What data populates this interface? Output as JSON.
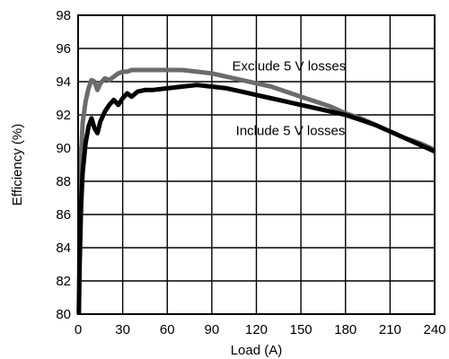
{
  "chart_data": {
    "type": "line",
    "title": "",
    "xlabel": "Load (A)",
    "ylabel": "Efficiency (%)",
    "xlim": [
      0,
      240
    ],
    "ylim": [
      80,
      98
    ],
    "xticks": [
      0,
      30,
      60,
      90,
      120,
      150,
      180,
      210,
      240
    ],
    "yticks": [
      80,
      82,
      84,
      86,
      88,
      90,
      92,
      94,
      96,
      98
    ],
    "grid": true,
    "legend": "none",
    "series": [
      {
        "name": "Exclude 5 V losses",
        "color": "#6b6b6b",
        "points": [
          [
            0.5,
            80.0
          ],
          [
            1,
            86.0
          ],
          [
            2,
            89.5
          ],
          [
            3,
            91.5
          ],
          [
            5,
            92.8
          ],
          [
            7,
            93.6
          ],
          [
            9,
            94.1
          ],
          [
            11,
            94.0
          ],
          [
            13,
            93.5
          ],
          [
            15,
            93.9
          ],
          [
            18,
            94.2
          ],
          [
            21,
            94.1
          ],
          [
            24,
            94.3
          ],
          [
            27,
            94.5
          ],
          [
            30,
            94.6
          ],
          [
            33,
            94.6
          ],
          [
            36,
            94.7
          ],
          [
            40,
            94.7
          ],
          [
            45,
            94.7
          ],
          [
            50,
            94.7
          ],
          [
            60,
            94.7
          ],
          [
            70,
            94.7
          ],
          [
            80,
            94.6
          ],
          [
            90,
            94.5
          ],
          [
            100,
            94.3
          ],
          [
            110,
            94.1
          ],
          [
            120,
            93.9
          ],
          [
            130,
            93.7
          ],
          [
            140,
            93.4
          ],
          [
            150,
            93.1
          ],
          [
            160,
            92.8
          ],
          [
            170,
            92.5
          ],
          [
            180,
            92.1
          ],
          [
            190,
            91.8
          ],
          [
            200,
            91.4
          ],
          [
            210,
            91.0
          ],
          [
            220,
            90.6
          ],
          [
            230,
            90.3
          ],
          [
            240,
            89.9
          ]
        ]
      },
      {
        "name": "Include 5 V losses",
        "color": "#000000",
        "points": [
          [
            0.5,
            80.0
          ],
          [
            1,
            83.0
          ],
          [
            2,
            86.5
          ],
          [
            3,
            88.5
          ],
          [
            5,
            90.3
          ],
          [
            7,
            91.3
          ],
          [
            9,
            91.8
          ],
          [
            11,
            91.2
          ],
          [
            13,
            90.9
          ],
          [
            15,
            91.6
          ],
          [
            18,
            92.2
          ],
          [
            21,
            92.6
          ],
          [
            24,
            92.9
          ],
          [
            27,
            92.6
          ],
          [
            30,
            93.0
          ],
          [
            33,
            93.3
          ],
          [
            36,
            93.1
          ],
          [
            40,
            93.4
          ],
          [
            45,
            93.5
          ],
          [
            50,
            93.5
          ],
          [
            60,
            93.6
          ],
          [
            70,
            93.7
          ],
          [
            80,
            93.8
          ],
          [
            90,
            93.7
          ],
          [
            100,
            93.6
          ],
          [
            110,
            93.4
          ],
          [
            120,
            93.2
          ],
          [
            130,
            93.0
          ],
          [
            140,
            92.8
          ],
          [
            150,
            92.6
          ],
          [
            160,
            92.4
          ],
          [
            170,
            92.2
          ],
          [
            180,
            92.0
          ],
          [
            190,
            91.7
          ],
          [
            200,
            91.4
          ],
          [
            210,
            91.0
          ],
          [
            220,
            90.6
          ],
          [
            230,
            90.2
          ],
          [
            240,
            89.8
          ]
        ]
      }
    ],
    "annotations": [
      {
        "text": "Exclude 5 V losses",
        "x": 142,
        "y": 94.95,
        "anchor": "middle",
        "for_series": 0
      },
      {
        "text": "Include 5 V losses",
        "x": 143,
        "y": 91.05,
        "anchor": "middle",
        "for_series": 1
      }
    ]
  }
}
